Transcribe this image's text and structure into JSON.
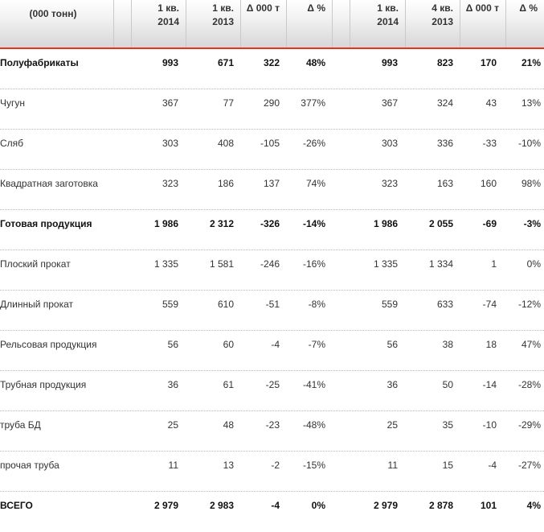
{
  "table": {
    "headers": [
      {
        "line1": "(000 тонн)",
        "line2": ""
      },
      {
        "line1": "",
        "line2": ""
      },
      {
        "line1": "1 кв.",
        "line2": "2014"
      },
      {
        "line1": "1 кв.",
        "line2": "2013"
      },
      {
        "line1": "Δ 000 т",
        "line2": ""
      },
      {
        "line1": "Δ %",
        "line2": ""
      },
      {
        "line1": "",
        "line2": ""
      },
      {
        "line1": "1 кв.",
        "line2": "2014"
      },
      {
        "line1": "4 кв.",
        "line2": "2013"
      },
      {
        "line1": "Δ 000 т",
        "line2": ""
      },
      {
        "line1": "Δ %",
        "line2": ""
      }
    ],
    "rows": [
      {
        "label": "Полуфабрикаты",
        "bold": true,
        "v": [
          "993",
          "671",
          "322",
          "48%",
          "993",
          "823",
          "170",
          "21%"
        ]
      },
      {
        "label": "Чугун",
        "bold": false,
        "v": [
          "367",
          "77",
          "290",
          "377%",
          "367",
          "324",
          "43",
          "13%"
        ]
      },
      {
        "label": "Сляб",
        "bold": false,
        "v": [
          "303",
          "408",
          "-105",
          "-26%",
          "303",
          "336",
          "-33",
          "-10%"
        ]
      },
      {
        "label": "Квадратная заготовка",
        "bold": false,
        "v": [
          "323",
          "186",
          "137",
          "74%",
          "323",
          "163",
          "160",
          "98%"
        ]
      },
      {
        "label": "Готовая продукция",
        "bold": true,
        "v": [
          "1 986",
          "2 312",
          "-326",
          "-14%",
          "1 986",
          "2 055",
          "-69",
          "-3%"
        ]
      },
      {
        "label": "Плоский прокат",
        "bold": false,
        "v": [
          "1 335",
          "1 581",
          "-246",
          "-16%",
          "1 335",
          "1 334",
          "1",
          "0%"
        ]
      },
      {
        "label": "Длинный прокат",
        "bold": false,
        "v": [
          "559",
          "610",
          "-51",
          "-8%",
          "559",
          "633",
          "-74",
          "-12%"
        ]
      },
      {
        "label": "Рельсовая продукция",
        "bold": false,
        "v": [
          "56",
          "60",
          "-4",
          "-7%",
          "56",
          "38",
          "18",
          "47%"
        ]
      },
      {
        "label": "Трубная продукция",
        "bold": false,
        "v": [
          "36",
          "61",
          "-25",
          "-41%",
          "36",
          "50",
          "-14",
          "-28%"
        ]
      },
      {
        "label": "труба БД",
        "bold": false,
        "v": [
          "25",
          "48",
          "-23",
          "-48%",
          "25",
          "35",
          "-10",
          "-29%"
        ]
      },
      {
        "label": "прочая труба",
        "bold": false,
        "v": [
          "11",
          "13",
          "-2",
          "-15%",
          "11",
          "15",
          "-4",
          "-27%"
        ]
      },
      {
        "label": "ВСЕГО",
        "bold": true,
        "v": [
          "2 979",
          "2 983",
          "-4",
          "0%",
          "2 979",
          "2 878",
          "101",
          "4%"
        ]
      }
    ]
  },
  "colors": {
    "accent": "#e53222",
    "header_bg": "#d7d7d7",
    "divider": "#c9c9c9"
  }
}
